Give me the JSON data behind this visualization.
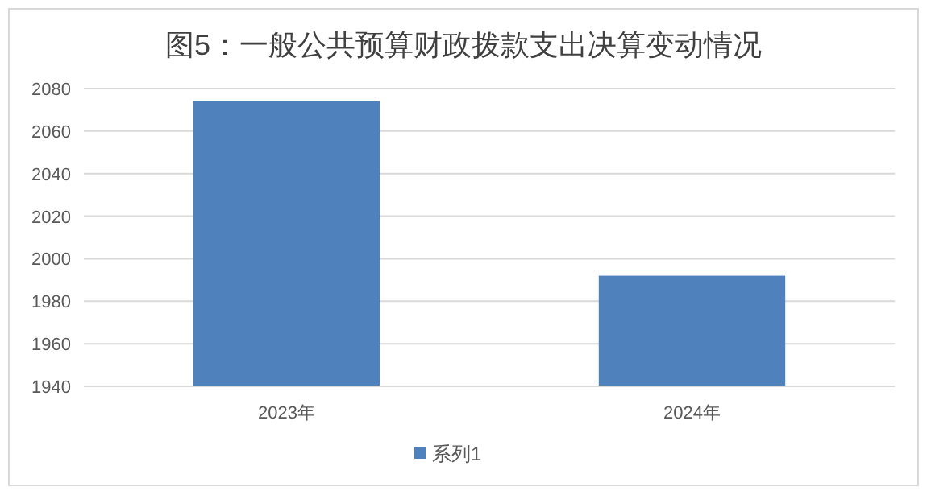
{
  "chart_data": {
    "type": "bar",
    "title": "图5：一般公共预算财政拨款支出决算变动情况",
    "categories": [
      "2023年",
      "2024年"
    ],
    "series": [
      {
        "name": "系列1",
        "color": "#4f81bd",
        "values": [
          2074,
          1992
        ]
      }
    ],
    "ylim": [
      1940,
      2080
    ],
    "yticks": [
      1940,
      1960,
      1980,
      2000,
      2020,
      2040,
      2060,
      2080
    ],
    "grid": "y",
    "legend": "bottom"
  }
}
